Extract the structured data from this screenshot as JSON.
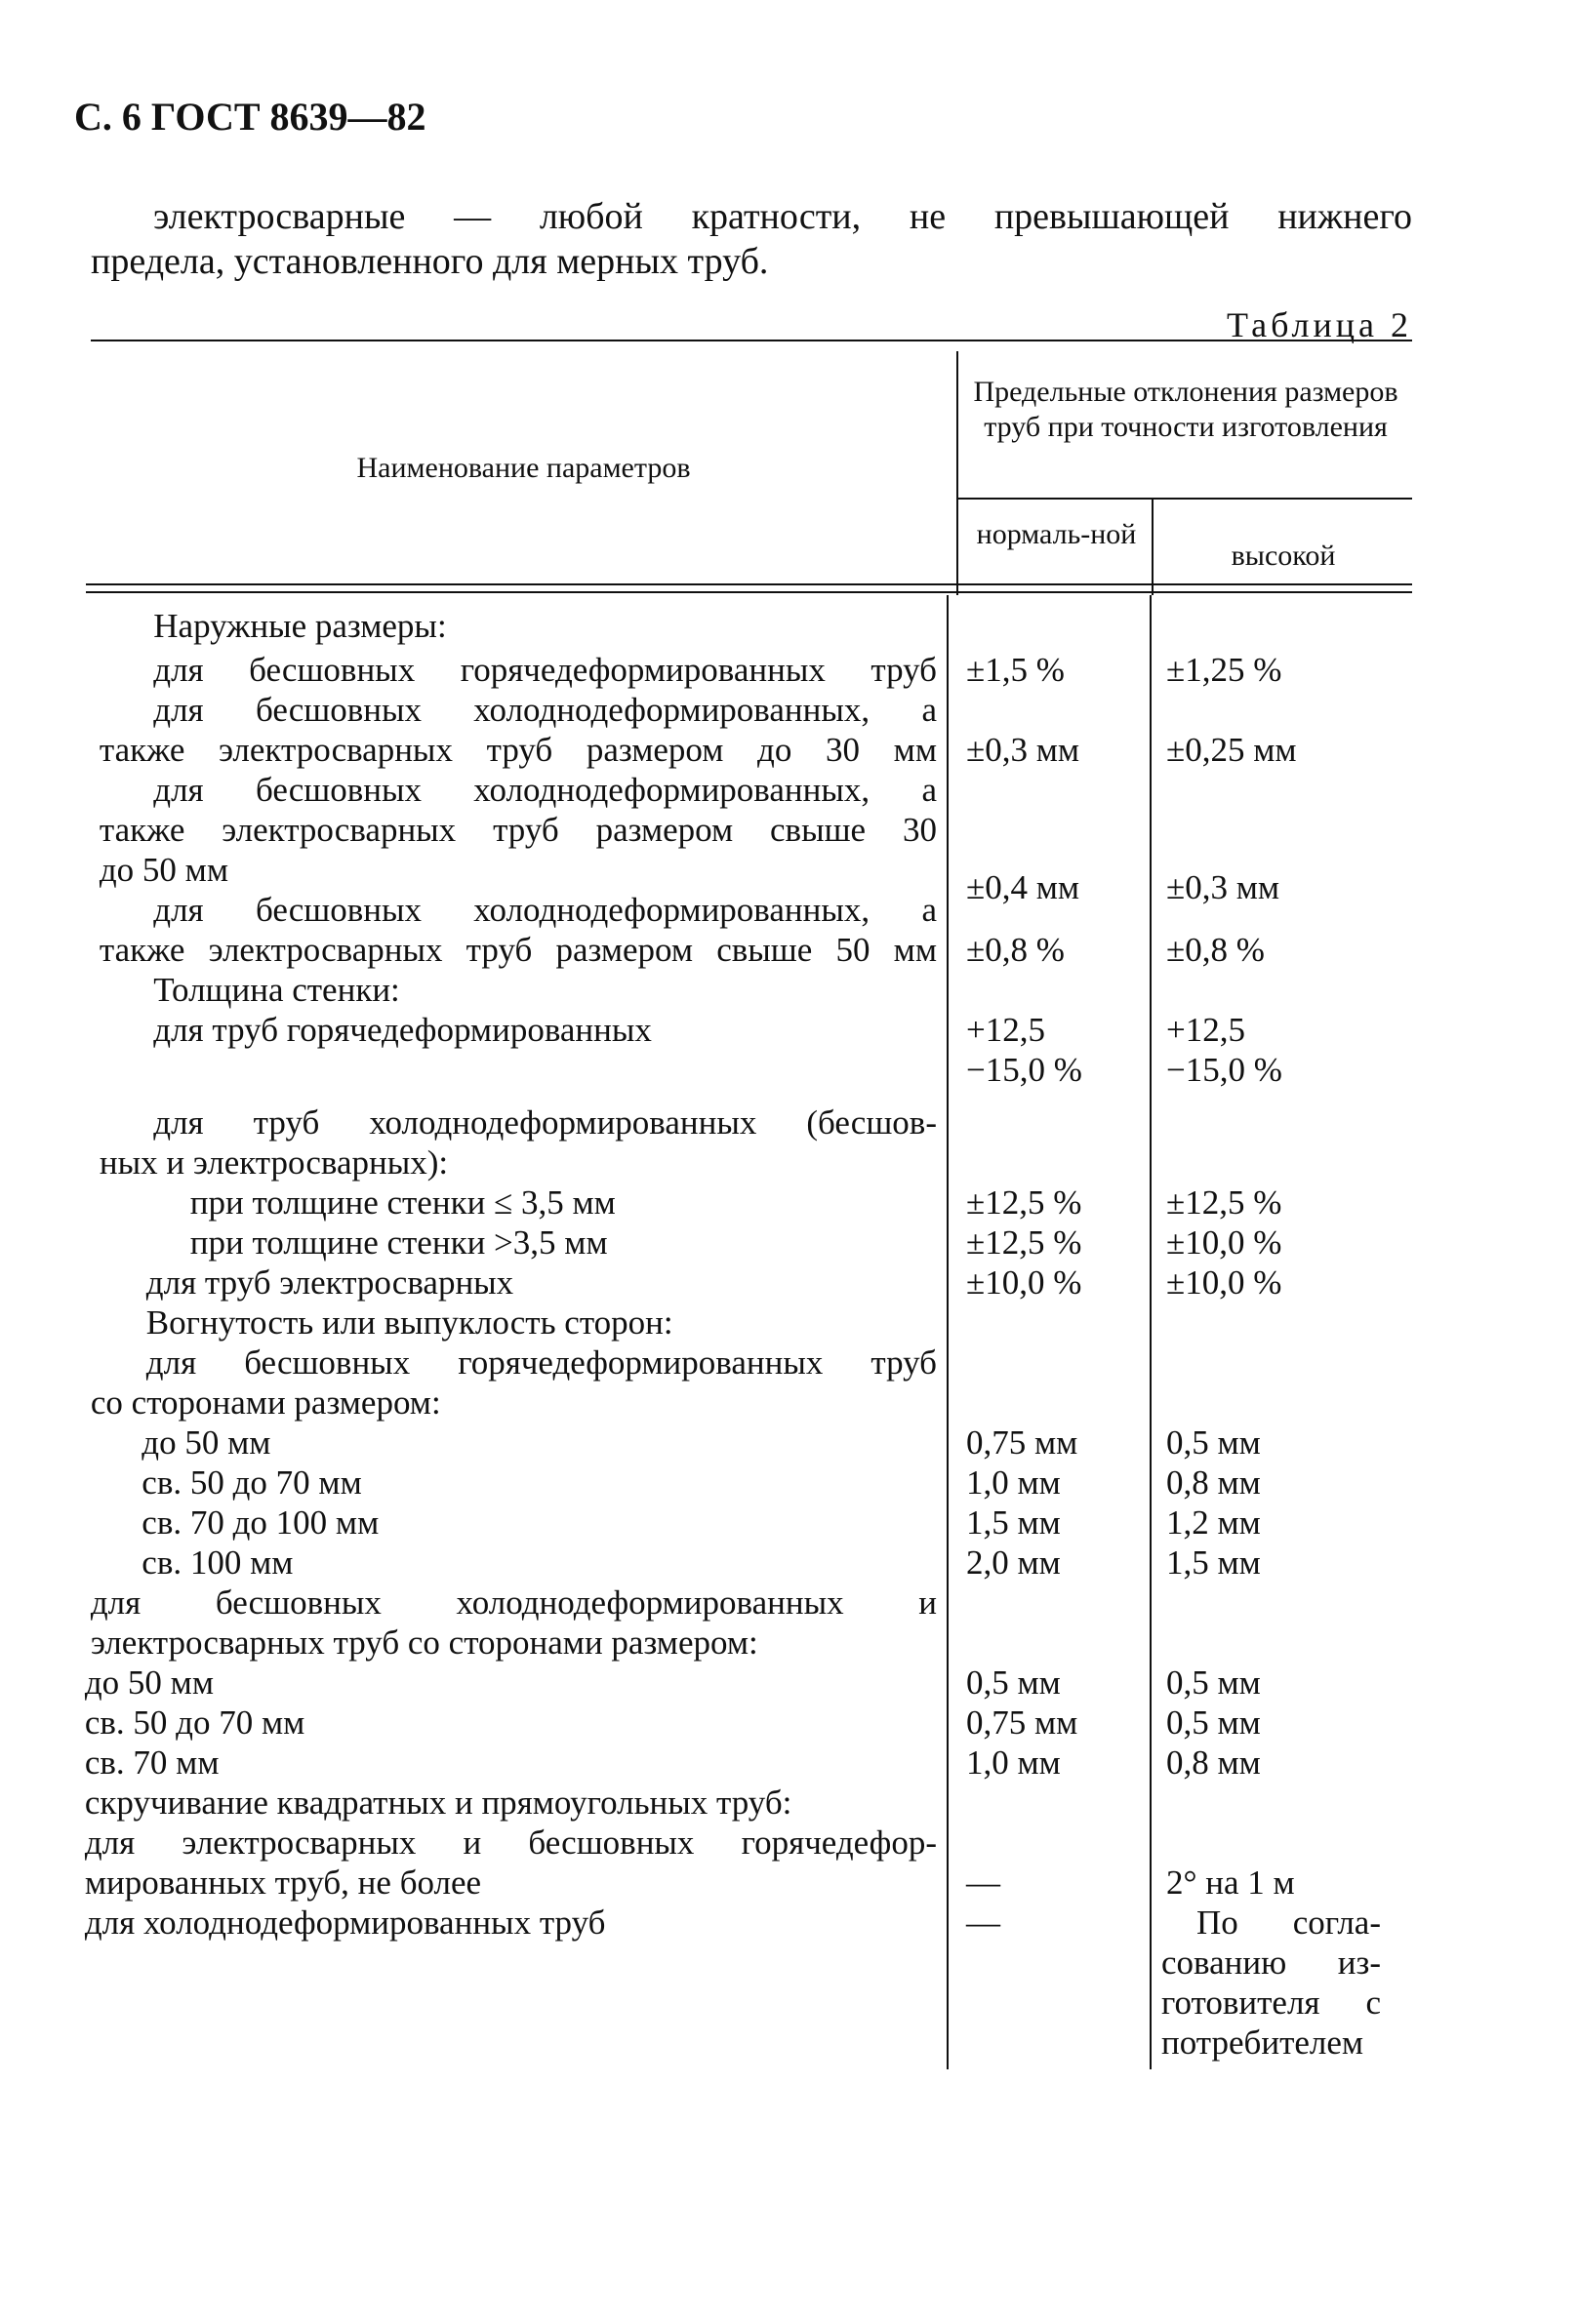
{
  "page": {
    "header": "С. 6 ГОСТ 8639—82",
    "paragraph_line1": "электросварные — любой кратности, не превышающей нижнего",
    "paragraph_line2": "предела, установленного для мерных труб.",
    "table_label": "Таблица 2"
  },
  "table": {
    "headers": {
      "parameter": "Наименование параметров",
      "deviations": "Предельные отклонения размеров труб при точности изготовления",
      "normal": "нормаль-ной",
      "high": "высокой"
    },
    "rows": [
      {
        "param": "Наружные размеры:",
        "normal": "",
        "high": ""
      },
      {
        "param": "для бесшовных горячедеформированных труб",
        "normal": "±1,5 %",
        "high": "±1,25 %"
      },
      {
        "param": "для бесшовных холоднодеформированных, а",
        "normal": "",
        "high": ""
      },
      {
        "param": "также электросварных труб размером до 30 мм",
        "normal": "±0,3 мм",
        "high": "±0,25 мм"
      },
      {
        "param": "для бесшовных холоднодеформированных, а",
        "normal": "",
        "high": ""
      },
      {
        "param": "также электросварных труб размером свыше 30",
        "normal": "",
        "high": ""
      },
      {
        "param": "до 50 мм",
        "normal": "±0,4 мм",
        "high": "±0,3 мм"
      },
      {
        "param": "для бесшовных холоднодеформированных, а",
        "normal": "",
        "high": ""
      },
      {
        "param": "также электросварных труб размером свыше 50 мм",
        "normal": "±0,8 %",
        "high": "±0,8 %"
      },
      {
        "param": "Толщина стенки:",
        "normal": "",
        "high": ""
      },
      {
        "param": "для труб горячедеформированных",
        "normal": "+12,5",
        "high": "+12,5"
      },
      {
        "param": "",
        "normal": "−15,0 %",
        "high": "−15,0 %"
      },
      {
        "param": "для труб холоднодеформированных (бесшов-",
        "normal": "",
        "high": ""
      },
      {
        "param": "ных и электросварных):",
        "normal": "",
        "high": ""
      },
      {
        "param": "при толщине стенки ≤ 3,5 мм",
        "normal": "±12,5 %",
        "high": "±12,5 %"
      },
      {
        "param": "при толщине стенки >3,5 мм",
        "normal": "±12,5 %",
        "high": "±10,0 %"
      },
      {
        "param": "для труб электросварных",
        "normal": "±10,0 %",
        "high": "±10,0 %"
      },
      {
        "param": "Вогнутость или выпуклость сторон:",
        "normal": "",
        "high": ""
      },
      {
        "param": "для бесшовных горячедеформированных труб",
        "normal": "",
        "high": ""
      },
      {
        "param": "со сторонами размером:",
        "normal": "",
        "high": ""
      },
      {
        "param": "до 50 мм",
        "normal": "0,75 мм",
        "high": "0,5 мм"
      },
      {
        "param": "св. 50 до 70 мм",
        "normal": "1,0 мм",
        "high": "0,8 мм"
      },
      {
        "param": "св. 70 до 100 мм",
        "normal": "1,5 мм",
        "high": "1,2 мм"
      },
      {
        "param": "св. 100 мм",
        "normal": "2,0 мм",
        "high": "1,5 мм"
      },
      {
        "param": "для бесшовных холоднодеформированных и",
        "normal": "",
        "high": ""
      },
      {
        "param": "электросварных труб со сторонами размером:",
        "normal": "",
        "high": ""
      },
      {
        "param": "до 50 мм",
        "normal": "0,5 мм",
        "high": "0,5 мм"
      },
      {
        "param": "св. 50 до 70 мм",
        "normal": "0,75 мм",
        "high": "0,5 мм"
      },
      {
        "param": "св. 70 мм",
        "normal": "1,0 мм",
        "high": "0,8 мм"
      },
      {
        "param": "скручивание квадратных и прямоугольных труб:",
        "normal": "",
        "high": ""
      },
      {
        "param": "для электросварных и бесшовных горячедефор-",
        "normal": "",
        "high": ""
      },
      {
        "param": "мированных труб, не более",
        "normal": "—",
        "high": "2° на 1 м"
      },
      {
        "param": "для холоднодеформированных труб",
        "normal": "—",
        "high": "По согла-"
      },
      {
        "param": "",
        "normal": "",
        "high": "сованию из-"
      },
      {
        "param": "",
        "normal": "",
        "high": "готовителя с"
      },
      {
        "param": "",
        "normal": "",
        "high": "потребителем"
      }
    ]
  }
}
